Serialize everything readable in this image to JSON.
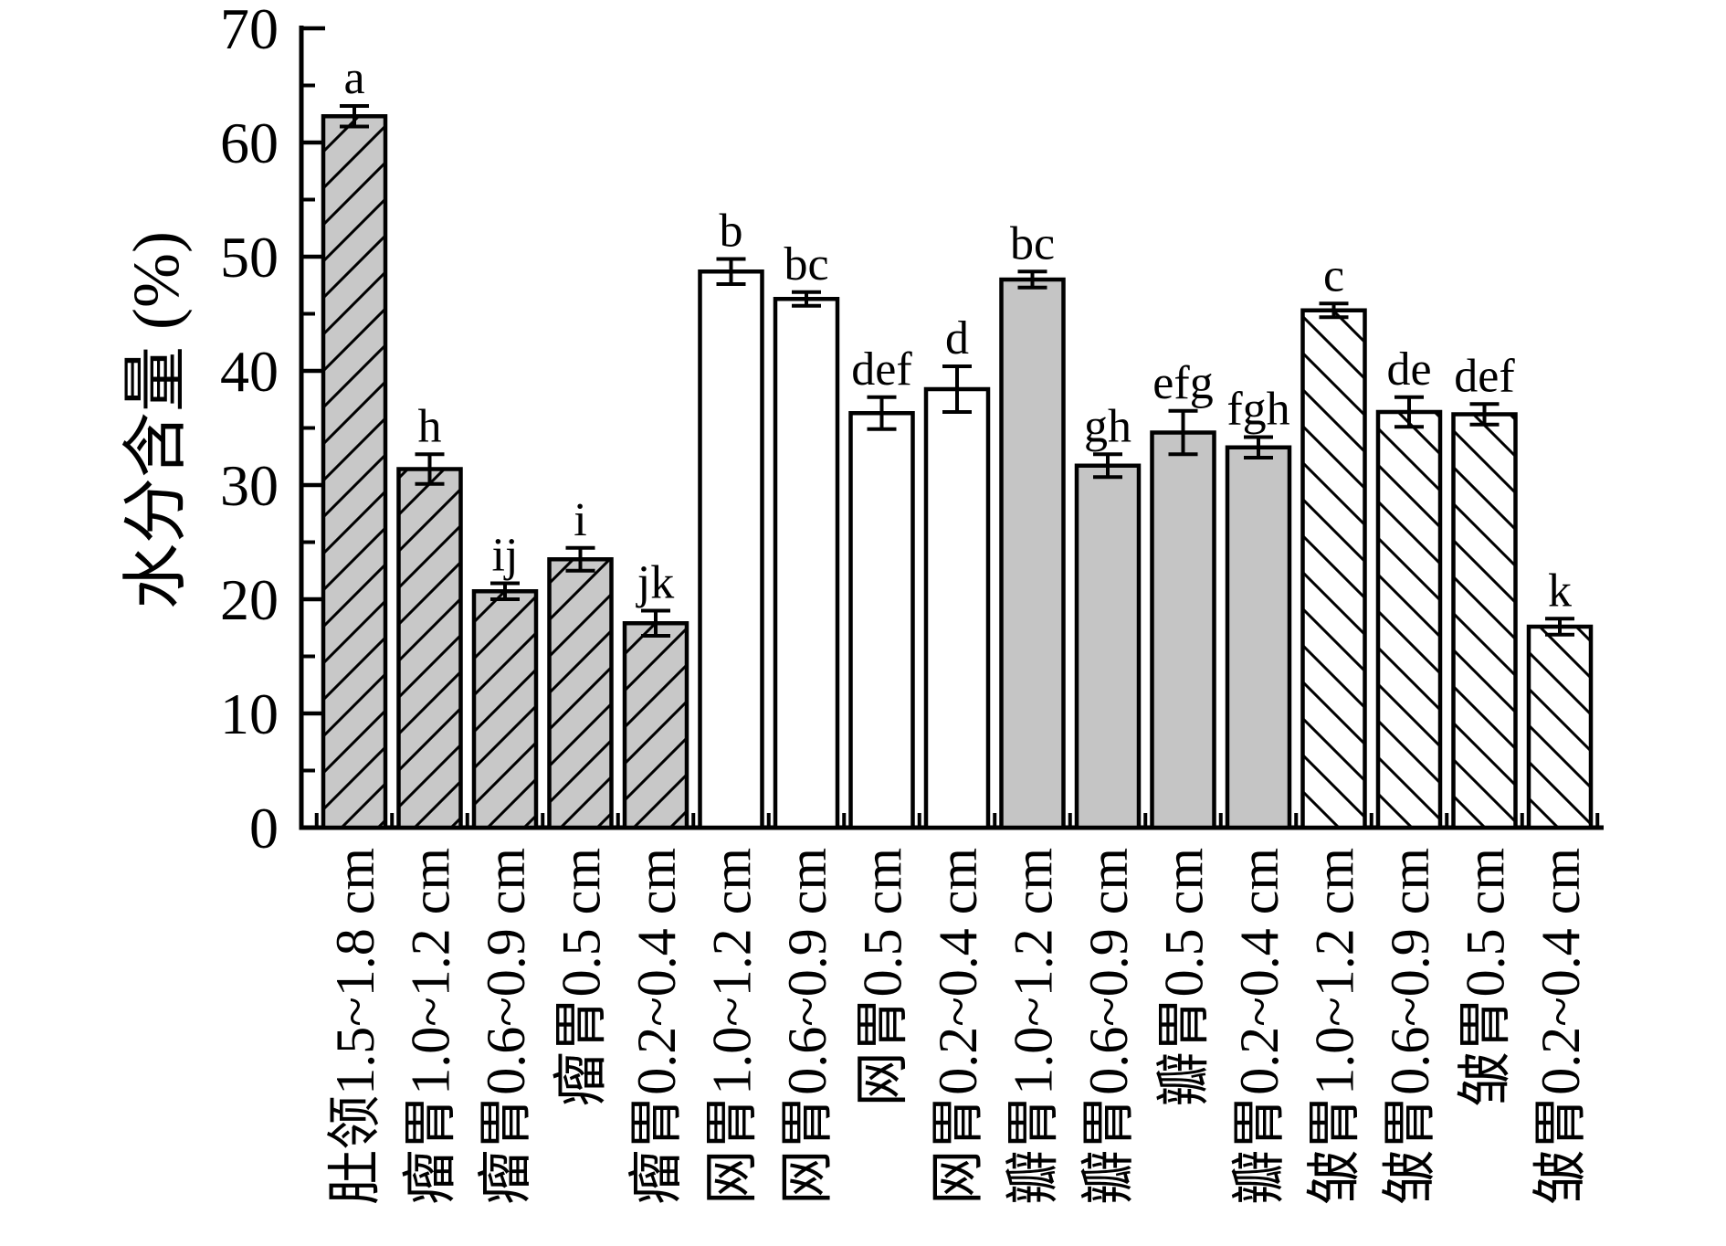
{
  "figure": {
    "background": "#ffffff",
    "frame": "open-left-bottom-axes"
  },
  "chart_data": {
    "type": "bar",
    "title": "",
    "xlabel": "",
    "ylabel": "水分含量 (%)",
    "ylim": [
      0,
      70
    ],
    "yticks": [
      0,
      10,
      20,
      30,
      40,
      50,
      60,
      70
    ],
    "yminor_step": 5,
    "grid": false,
    "legend": "none",
    "axis_color": "#000000",
    "error_bars": true,
    "categories": [
      "肚领1.5~1.8 cm",
      "瘤胃1.0~1.2 cm",
      "瘤胃0.6~0.9 cm",
      "瘤胃0.5 cm",
      "瘤胃0.2~0.4 cm",
      "网胃1.0~1.2 cm",
      "网胃0.6~0.9 cm",
      "网胃0.5 cm",
      "网胃0.2~0.4 cm",
      "瓣胃1.0~1.2 cm",
      "瓣胃0.6~0.9 cm",
      "瓣胃0.5 cm",
      "瓣胃0.2~0.4 cm",
      "皱胃1.0~1.2 cm",
      "皱胃0.6~0.9 cm",
      "皱胃0.5 cm",
      "皱胃0.2~0.4 cm"
    ],
    "values": [
      62.3,
      31.4,
      20.7,
      23.5,
      17.9,
      48.7,
      46.3,
      36.3,
      38.4,
      48.0,
      31.7,
      34.6,
      33.3,
      45.3,
      36.4,
      36.2,
      17.6
    ],
    "errors": [
      0.9,
      1.3,
      0.7,
      1.0,
      1.1,
      1.1,
      0.6,
      1.4,
      2.0,
      0.7,
      1.0,
      1.9,
      0.9,
      0.6,
      1.3,
      0.9,
      0.7
    ],
    "sig_letters": [
      "a",
      "h",
      "ij",
      "i",
      "jk",
      "b",
      "bc",
      "def",
      "d",
      "bc",
      "gh",
      "efg",
      "fgh",
      "c",
      "de",
      "def",
      "k"
    ],
    "bar_styles": [
      "hatch_gray",
      "hatch_gray",
      "hatch_gray",
      "hatch_gray",
      "hatch_gray",
      "plain_white",
      "plain_white",
      "plain_white",
      "plain_white",
      "solid_gray",
      "solid_gray",
      "solid_gray",
      "solid_gray",
      "hatch_white",
      "hatch_white",
      "hatch_white",
      "hatch_white"
    ],
    "style_defs": {
      "hatch_gray": {
        "fill": "#c8c8c8",
        "hatch": "forward"
      },
      "plain_white": {
        "fill": "#ffffff",
        "hatch": "none"
      },
      "solid_gray": {
        "fill": "#c5c5c5",
        "hatch": "none"
      },
      "hatch_white": {
        "fill": "#ffffff",
        "hatch": "backward"
      }
    }
  }
}
